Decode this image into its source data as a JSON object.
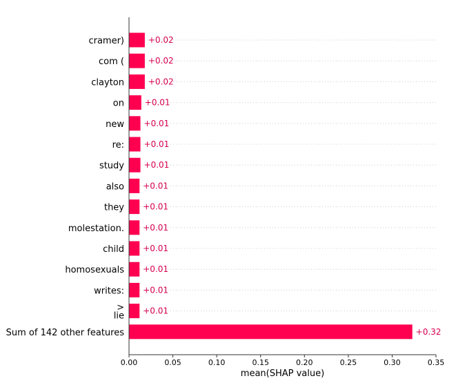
{
  "chart_data": {
    "type": "bar",
    "orientation": "horizontal",
    "categories": [
      "cramer)",
      "com (",
      "clayton",
      "on",
      "new",
      "re:",
      "study",
      "also",
      "they",
      "molestation.",
      "child",
      "homosexuals",
      "writes:",
      ">",
      "lie",
      "Sum of 142 other features"
    ],
    "rows": [
      {
        "labels": [
          "cramer)"
        ],
        "value": 0.018,
        "value_label": "+0.02"
      },
      {
        "labels": [
          "com ("
        ],
        "value": 0.018,
        "value_label": "+0.02"
      },
      {
        "labels": [
          "clayton"
        ],
        "value": 0.018,
        "value_label": "+0.02"
      },
      {
        "labels": [
          "on"
        ],
        "value": 0.014,
        "value_label": "+0.01"
      },
      {
        "labels": [
          "new"
        ],
        "value": 0.013,
        "value_label": "+0.01"
      },
      {
        "labels": [
          "re:"
        ],
        "value": 0.013,
        "value_label": "+0.01"
      },
      {
        "labels": [
          "study"
        ],
        "value": 0.013,
        "value_label": "+0.01"
      },
      {
        "labels": [
          "also"
        ],
        "value": 0.012,
        "value_label": "+0.01"
      },
      {
        "labels": [
          "they"
        ],
        "value": 0.012,
        "value_label": "+0.01"
      },
      {
        "labels": [
          "molestation."
        ],
        "value": 0.012,
        "value_label": "+0.01"
      },
      {
        "labels": [
          "child"
        ],
        "value": 0.012,
        "value_label": "+0.01"
      },
      {
        "labels": [
          "homosexuals"
        ],
        "value": 0.012,
        "value_label": "+0.01"
      },
      {
        "labels": [
          "writes:"
        ],
        "value": 0.012,
        "value_label": "+0.01"
      },
      {
        "labels": [
          ">",
          "lie"
        ],
        "value": 0.012,
        "value_label": "+0.01"
      },
      {
        "labels": [
          "Sum of 142 other features"
        ],
        "value": 0.323,
        "value_label": "+0.32"
      }
    ],
    "xlabel": "mean(SHAP value)",
    "xlim": [
      0,
      0.35
    ],
    "xticks": [
      0.0,
      0.05,
      0.1,
      0.15,
      0.2,
      0.25,
      0.3,
      0.35
    ],
    "xtick_labels": [
      "0.00",
      "0.05",
      "0.10",
      "0.15",
      "0.20",
      "0.25",
      "0.30",
      "0.35"
    ],
    "grid": "horizontal dotted",
    "colors": {
      "bar": "#ff0051",
      "value_label": "#d6004f",
      "grid": "#cccccc",
      "axis": "#333333"
    }
  }
}
